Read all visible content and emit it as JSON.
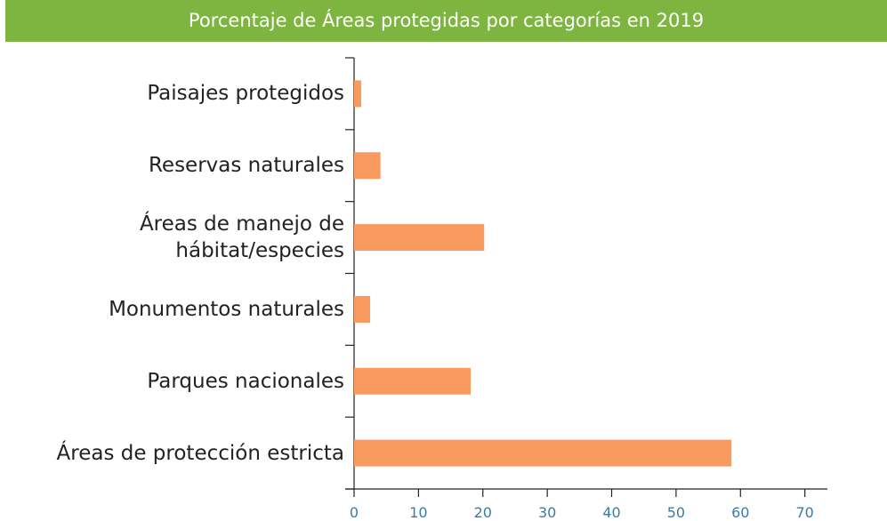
{
  "chart_data": {
    "type": "barh",
    "title": "Porcentaje de Áreas protegidas por categorías en 2019",
    "categories": [
      "Paisajes protegidos",
      "Reservas naturales",
      "Áreas de manejo de\nhábitat/especies",
      "Monumentos naturales",
      "Parques nacionales",
      "Áreas de protección estricta"
    ],
    "values": [
      1.1,
      4.1,
      20.2,
      2.5,
      18.1,
      58.6
    ],
    "color": "#f99b5e",
    "xlim": [
      0,
      73.5
    ],
    "xticks": [
      0,
      10,
      20,
      30,
      40,
      50,
      60,
      70
    ],
    "grid": false
  }
}
